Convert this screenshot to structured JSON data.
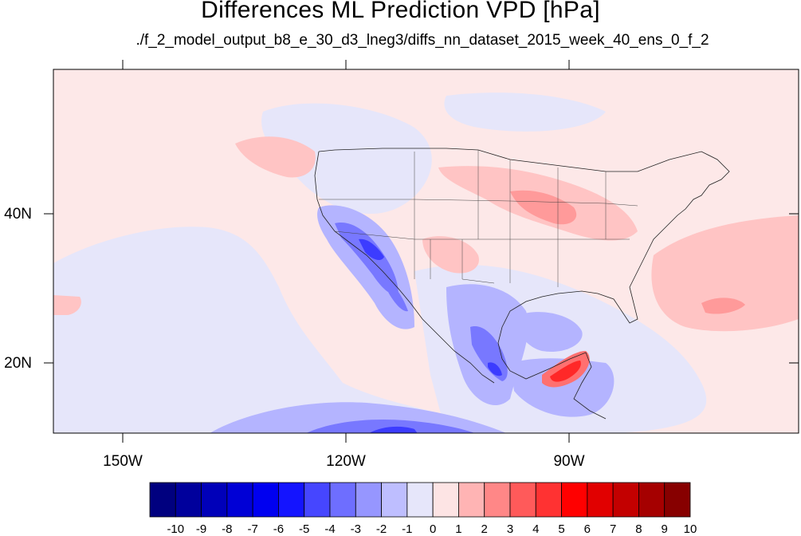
{
  "title": "Differences ML Prediction VPD [hPa]",
  "subtitle": "./f_2_model_output_b8_e_30_d3_lneg3/diffs_nn_dataset_2015_week_40_ens_0_f_2",
  "lon_labels": [
    "150W",
    "120W",
    "90W"
  ],
  "lat_labels": [
    "40N",
    "20N"
  ],
  "colorbar": {
    "labels": [
      "-10",
      "-9",
      "-8",
      "-7",
      "-6",
      "-5",
      "-4",
      "-3",
      "-2",
      "-1",
      "0",
      "1",
      "2",
      "3",
      "4",
      "5",
      "6",
      "7",
      "8",
      "9",
      "10"
    ],
    "colors": [
      "#00007f",
      "#00009c",
      "#0000b9",
      "#0000d6",
      "#0000f0",
      "#1414ff",
      "#4646ff",
      "#6e6eff",
      "#9696ff",
      "#bebeff",
      "#e6e6fa",
      "#fde4e4",
      "#ffb4b4",
      "#ff8787",
      "#ff5a5a",
      "#ff3232",
      "#ff0000",
      "#e10000",
      "#c30000",
      "#a50000",
      "#870000"
    ]
  }
}
